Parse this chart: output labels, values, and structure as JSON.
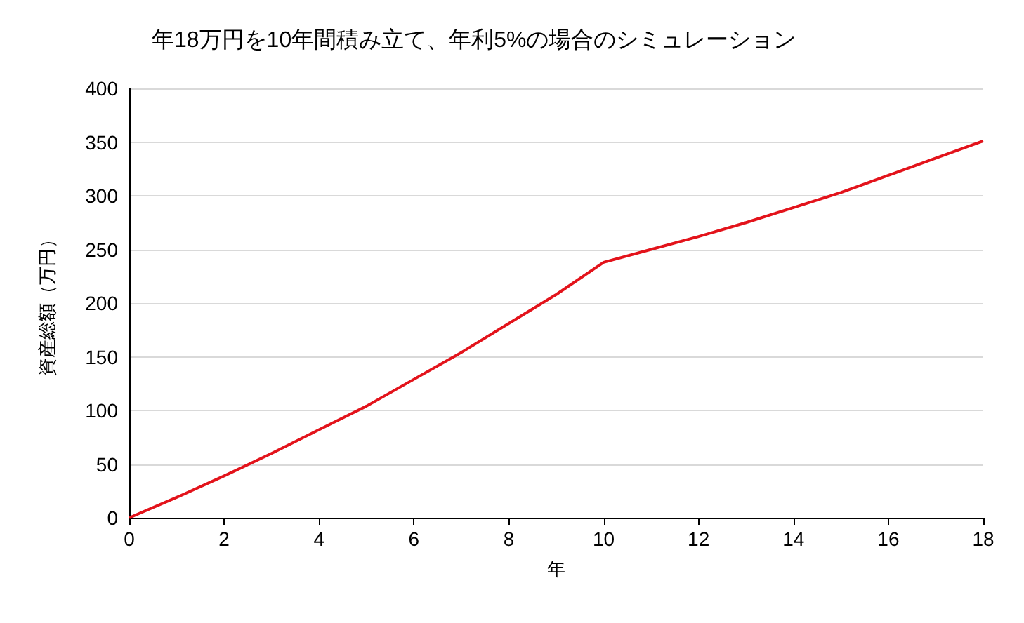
{
  "chart_data": {
    "type": "line",
    "title": "年18万円を10年間積み立て、年利5%の場合のシミュレーション",
    "xlabel": "年",
    "ylabel": "資産総額（万円）",
    "x": [
      0,
      1,
      2,
      3,
      4,
      5,
      6,
      7,
      8,
      9,
      10,
      11,
      12,
      13,
      14,
      15,
      16,
      17,
      18
    ],
    "series": [
      {
        "color": "#e3131b",
        "values": [
          0,
          19,
          39,
          60,
          82,
          104,
          129,
          154,
          181,
          208,
          238,
          250,
          262,
          275,
          289,
          303,
          319,
          335,
          351
        ]
      }
    ],
    "xlim": [
      0,
      18
    ],
    "xticks": [
      0,
      2,
      4,
      6,
      8,
      10,
      12,
      14,
      16,
      18
    ],
    "ylim": [
      0,
      400
    ],
    "yticks": [
      0,
      50,
      100,
      150,
      200,
      250,
      300,
      350,
      400
    ],
    "grid": "y",
    "marker": "none",
    "line_style": "solid"
  }
}
